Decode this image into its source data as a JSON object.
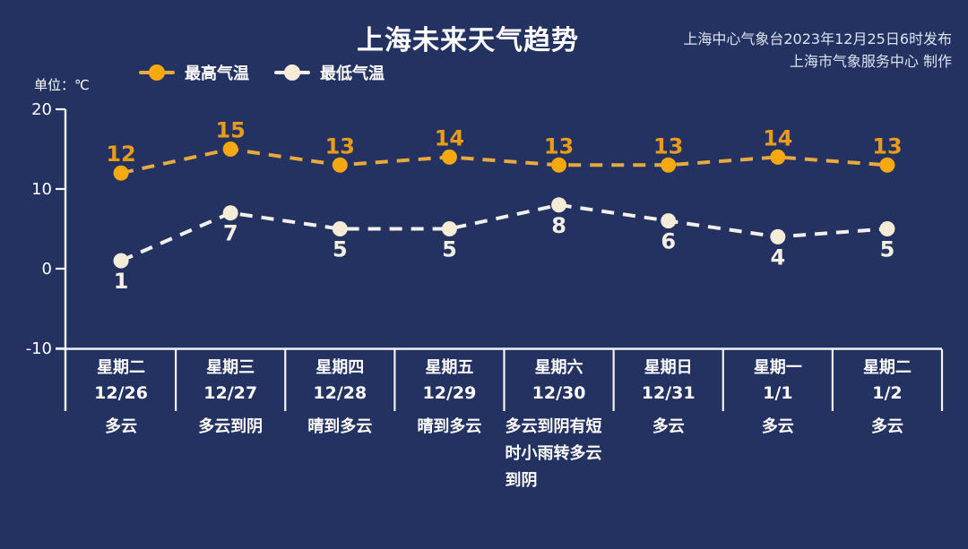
{
  "meta": {
    "title": "上海未来天气趋势",
    "publisher_line1": "上海中心气象台2023年12月25日6时发布",
    "publisher_line2": "上海市气象服务中心 制作",
    "unit_label": "单位：℃"
  },
  "colors": {
    "background": "#233261",
    "title_text": "#ffffff",
    "publisher_text": "#dde3ee",
    "axis": "#f3f3f3",
    "high_line": "#e8a93d",
    "high_dot": "#f5a90f",
    "high_value_label": "#e89c1a",
    "low_line": "#f2f0ea",
    "low_dot": "#f5ecd7",
    "low_value_label": "#f4efe3",
    "day_text": "#fdfdfd"
  },
  "chart_data": {
    "type": "line",
    "title": "上海未来天气趋势",
    "unit": "℃",
    "line_style": "dashed",
    "grid": false,
    "legend_position": "top-left",
    "ylim": [
      -10,
      20
    ],
    "yticks": [
      20,
      10,
      0,
      -10
    ],
    "x_categories": [
      "12/26",
      "12/27",
      "12/28",
      "12/29",
      "12/30",
      "12/31",
      "1/1",
      "1/2"
    ],
    "series": [
      {
        "key": "high",
        "name": "最高气温",
        "values": [
          12,
          15,
          13,
          14,
          13,
          13,
          14,
          13
        ],
        "line_color": "#e8a93d",
        "dot_color": "#f5a90f",
        "label_color": "#e89c1a",
        "label_side": "above"
      },
      {
        "key": "low",
        "name": "最低气温",
        "values": [
          1,
          7,
          5,
          5,
          8,
          6,
          4,
          5
        ],
        "line_color": "#f2f0ea",
        "dot_color": "#f5ecd7",
        "label_color": "#f4efe3",
        "label_side": "below"
      }
    ],
    "days": [
      {
        "weekday": "星期二",
        "date": "12/26",
        "weather": "多云"
      },
      {
        "weekday": "星期三",
        "date": "12/27",
        "weather": "多云到阴"
      },
      {
        "weekday": "星期四",
        "date": "12/28",
        "weather": "晴到多云"
      },
      {
        "weekday": "星期五",
        "date": "12/29",
        "weather": "晴到多云"
      },
      {
        "weekday": "星期六",
        "date": "12/30",
        "weather": "多云到阴有短时小雨转多云到阴"
      },
      {
        "weekday": "星期日",
        "date": "12/31",
        "weather": "多云"
      },
      {
        "weekday": "星期一",
        "date": "1/1",
        "weather": "多云"
      },
      {
        "weekday": "星期二",
        "date": "1/2",
        "weather": "多云"
      }
    ]
  }
}
